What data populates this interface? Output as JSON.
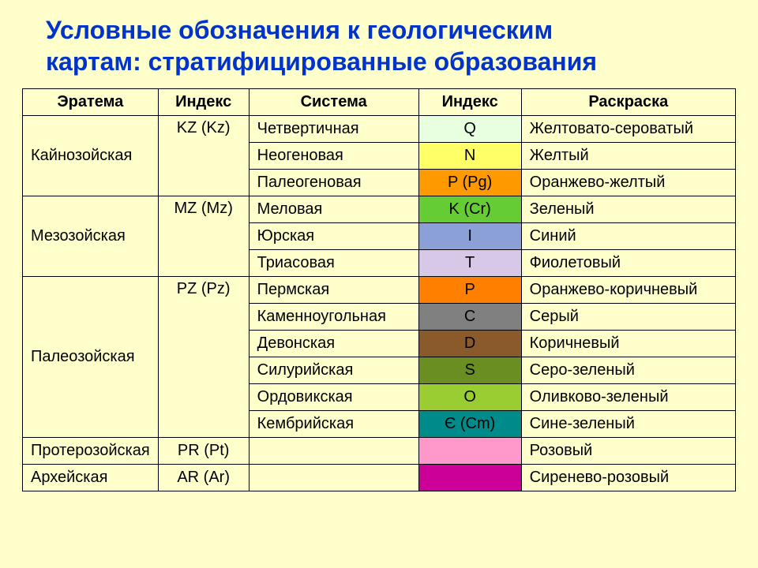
{
  "title_line1": "Условные обозначения к геологическим",
  "title_line2": "картам: стратифицированные образования",
  "columns": {
    "erathem": "Эратема",
    "idx1": "Индекс",
    "system": "Система",
    "idx2": "Индекс",
    "color": "Раскраска"
  },
  "eras": [
    {
      "name": "Кайнозойская",
      "index": "KZ (Kz)",
      "systems": [
        {
          "name": "Четвертичная",
          "sym": "Q",
          "swatch": "#e8ffe0",
          "color_name": "Желтовато-сероватый"
        },
        {
          "name": "Неогеновая",
          "sym": "N",
          "swatch": "#ffff66",
          "color_name": "Желтый"
        },
        {
          "name": "Палеогеновая",
          "sym": "P (Pg)",
          "swatch": "#ff9900",
          "color_name": "Оранжево-желтый"
        }
      ]
    },
    {
      "name": "Мезозойская",
      "index": "MZ (Mz)",
      "systems": [
        {
          "name": "Меловая",
          "sym": "K (Cr)",
          "swatch": "#66cc33",
          "color_name": "Зеленый"
        },
        {
          "name": "Юрская",
          "sym": "I",
          "swatch": "#8ca0d8",
          "color_name": "Синий"
        },
        {
          "name": "Триасовая",
          "sym": "T",
          "swatch": "#d8c8e8",
          "color_name": "Фиолетовый"
        }
      ]
    },
    {
      "name": "Палеозойская",
      "index": "PZ (Pz)",
      "systems": [
        {
          "name": "Пермская",
          "sym": "P",
          "swatch": "#ff8000",
          "color_name": "Оранжево-коричневый"
        },
        {
          "name": "Каменноугольная",
          "sym": "C",
          "swatch": "#808080",
          "color_name": "Серый"
        },
        {
          "name": "Девонская",
          "sym": "D",
          "swatch": "#8b5a2b",
          "color_name": "Коричневый"
        },
        {
          "name": "Силурийская",
          "sym": "S",
          "swatch": "#6b8e23",
          "color_name": "Серо-зеленый"
        },
        {
          "name": "Ордовикская",
          "sym": "O",
          "swatch": "#9acd32",
          "color_name": "Оливково-зеленый"
        },
        {
          "name": "Кембрийская",
          "sym": "Є (Cm)",
          "swatch": "#008b8b",
          "color_name": "Сине-зеленый"
        }
      ]
    },
    {
      "name": "Протерозойская",
      "index": "PR (Pt)",
      "systems": [
        {
          "name": "",
          "sym": "",
          "swatch": "#ff99cc",
          "color_name": "Розовый"
        }
      ]
    },
    {
      "name": "Архейская",
      "index": "AR (Ar)",
      "systems": [
        {
          "name": "",
          "sym": "",
          "swatch": "#cc0099",
          "color_name": "Сиренево-розовый"
        }
      ]
    }
  ]
}
